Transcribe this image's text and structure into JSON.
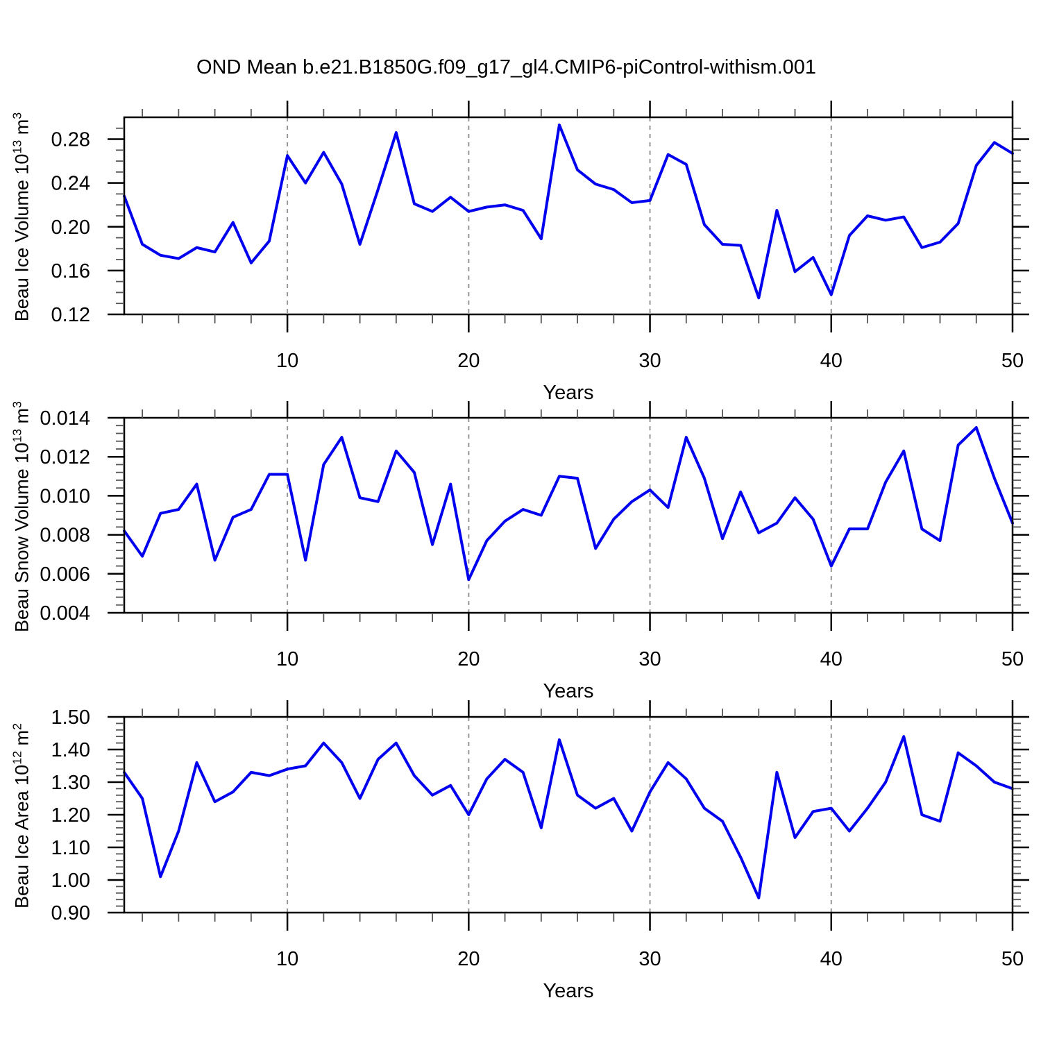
{
  "title": "OND Mean b.e21.B1850G.f09_g17_gl4.CMIP6-piControl-withism.001",
  "background": "#ffffff",
  "line_color": "#0000ee",
  "grid_color": "#979797",
  "x_axis": {
    "label": "Years",
    "min": 1,
    "max": 50,
    "major_ticks": [
      10,
      20,
      30,
      40,
      50
    ],
    "major_labels": [
      "10",
      "20",
      "30",
      "40",
      "50"
    ],
    "minor_step": 2,
    "grid_years": [
      10,
      20,
      30,
      40
    ]
  },
  "chart_data": [
    {
      "type": "line",
      "name": "beau-ice-volume",
      "title": "",
      "xlabel": "Years",
      "ylabel": "Beau Ice Volume 10^13 m^3",
      "ylabel_segments": [
        {
          "t": "Beau Ice Volume 10"
        },
        {
          "t": "13",
          "sup": true
        },
        {
          "t": " m"
        },
        {
          "t": "3",
          "sup": true
        }
      ],
      "ylim": [
        0.12,
        0.3
      ],
      "ytick_values": [
        0.12,
        0.16,
        0.2,
        0.24,
        0.28
      ],
      "ytick_labels": [
        "0.12",
        "0.16",
        "0.20",
        "0.24",
        "0.28"
      ],
      "y_minor_step": 0.01,
      "x": [
        1,
        2,
        3,
        4,
        5,
        6,
        7,
        8,
        9,
        10,
        11,
        12,
        13,
        14,
        15,
        16,
        17,
        18,
        19,
        20,
        21,
        22,
        23,
        24,
        25,
        26,
        27,
        28,
        29,
        30,
        31,
        32,
        33,
        34,
        35,
        36,
        37,
        38,
        39,
        40,
        41,
        42,
        43,
        44,
        45,
        46,
        47,
        48,
        49,
        50
      ],
      "values": [
        0.228,
        0.184,
        0.174,
        0.171,
        0.181,
        0.177,
        0.204,
        0.167,
        0.187,
        0.265,
        0.24,
        0.268,
        0.239,
        0.184,
        0.234,
        0.286,
        0.221,
        0.214,
        0.227,
        0.214,
        0.218,
        0.22,
        0.215,
        0.189,
        0.293,
        0.252,
        0.239,
        0.234,
        0.222,
        0.224,
        0.266,
        0.257,
        0.202,
        0.184,
        0.183,
        0.135,
        0.215,
        0.159,
        0.172,
        0.138,
        0.192,
        0.21,
        0.206,
        0.209,
        0.181,
        0.186,
        0.203,
        0.256,
        0.277,
        0.267
      ]
    },
    {
      "type": "line",
      "name": "beau-snow-volume",
      "title": "",
      "xlabel": "Years",
      "ylabel": "Beau Snow Volume 10^13 m^3",
      "ylabel_segments": [
        {
          "t": "Beau Snow Volume 10"
        },
        {
          "t": "13",
          "sup": true
        },
        {
          "t": " m"
        },
        {
          "t": "3",
          "sup": true
        }
      ],
      "ylim": [
        0.004,
        0.014
      ],
      "ytick_values": [
        0.004,
        0.006,
        0.008,
        0.01,
        0.012,
        0.014
      ],
      "ytick_labels": [
        "0.004",
        "0.006",
        "0.008",
        "0.010",
        "0.012",
        "0.014"
      ],
      "y_minor_step": 0.0004,
      "x": [
        1,
        2,
        3,
        4,
        5,
        6,
        7,
        8,
        9,
        10,
        11,
        12,
        13,
        14,
        15,
        16,
        17,
        18,
        19,
        20,
        21,
        22,
        23,
        24,
        25,
        26,
        27,
        28,
        29,
        30,
        31,
        32,
        33,
        34,
        35,
        36,
        37,
        38,
        39,
        40,
        41,
        42,
        43,
        44,
        45,
        46,
        47,
        48,
        49,
        50
      ],
      "values": [
        0.0082,
        0.0069,
        0.0091,
        0.0093,
        0.0106,
        0.0067,
        0.0089,
        0.0093,
        0.0111,
        0.0111,
        0.0067,
        0.0116,
        0.013,
        0.0099,
        0.0097,
        0.0123,
        0.0112,
        0.0075,
        0.0106,
        0.0057,
        0.0077,
        0.0087,
        0.0093,
        0.009,
        0.011,
        0.0109,
        0.0073,
        0.0088,
        0.0097,
        0.0103,
        0.0094,
        0.013,
        0.0109,
        0.0078,
        0.0102,
        0.0081,
        0.0086,
        0.0099,
        0.0088,
        0.0064,
        0.0083,
        0.0083,
        0.0107,
        0.0123,
        0.0083,
        0.0077,
        0.0126,
        0.0135,
        0.0109,
        0.0086
      ]
    },
    {
      "type": "line",
      "name": "beau-ice-area",
      "title": "",
      "xlabel": "Years",
      "ylabel": "Beau Ice Area 10^12 m^2",
      "ylabel_segments": [
        {
          "t": "Beau Ice Area 10"
        },
        {
          "t": "12",
          "sup": true
        },
        {
          "t": " m"
        },
        {
          "t": "2",
          "sup": true
        }
      ],
      "ylim": [
        0.9,
        1.5
      ],
      "ytick_values": [
        0.9,
        1.0,
        1.1,
        1.2,
        1.3,
        1.4,
        1.5
      ],
      "ytick_labels": [
        "0.90",
        "1.00",
        "1.10",
        "1.20",
        "1.30",
        "1.40",
        "1.50"
      ],
      "y_minor_step": 0.02,
      "x": [
        1,
        2,
        3,
        4,
        5,
        6,
        7,
        8,
        9,
        10,
        11,
        12,
        13,
        14,
        15,
        16,
        17,
        18,
        19,
        20,
        21,
        22,
        23,
        24,
        25,
        26,
        27,
        28,
        29,
        30,
        31,
        32,
        33,
        34,
        35,
        36,
        37,
        38,
        39,
        40,
        41,
        42,
        43,
        44,
        45,
        46,
        47,
        48,
        49,
        50
      ],
      "values": [
        1.33,
        1.25,
        1.01,
        1.15,
        1.36,
        1.24,
        1.27,
        1.33,
        1.32,
        1.34,
        1.35,
        1.42,
        1.36,
        1.25,
        1.37,
        1.42,
        1.32,
        1.26,
        1.29,
        1.2,
        1.31,
        1.37,
        1.33,
        1.16,
        1.43,
        1.26,
        1.22,
        1.25,
        1.15,
        1.27,
        1.36,
        1.31,
        1.22,
        1.18,
        1.07,
        0.945,
        1.33,
        1.13,
        1.21,
        1.22,
        1.15,
        1.22,
        1.3,
        1.44,
        1.2,
        1.18,
        1.39,
        1.35,
        1.3,
        1.28
      ]
    }
  ]
}
